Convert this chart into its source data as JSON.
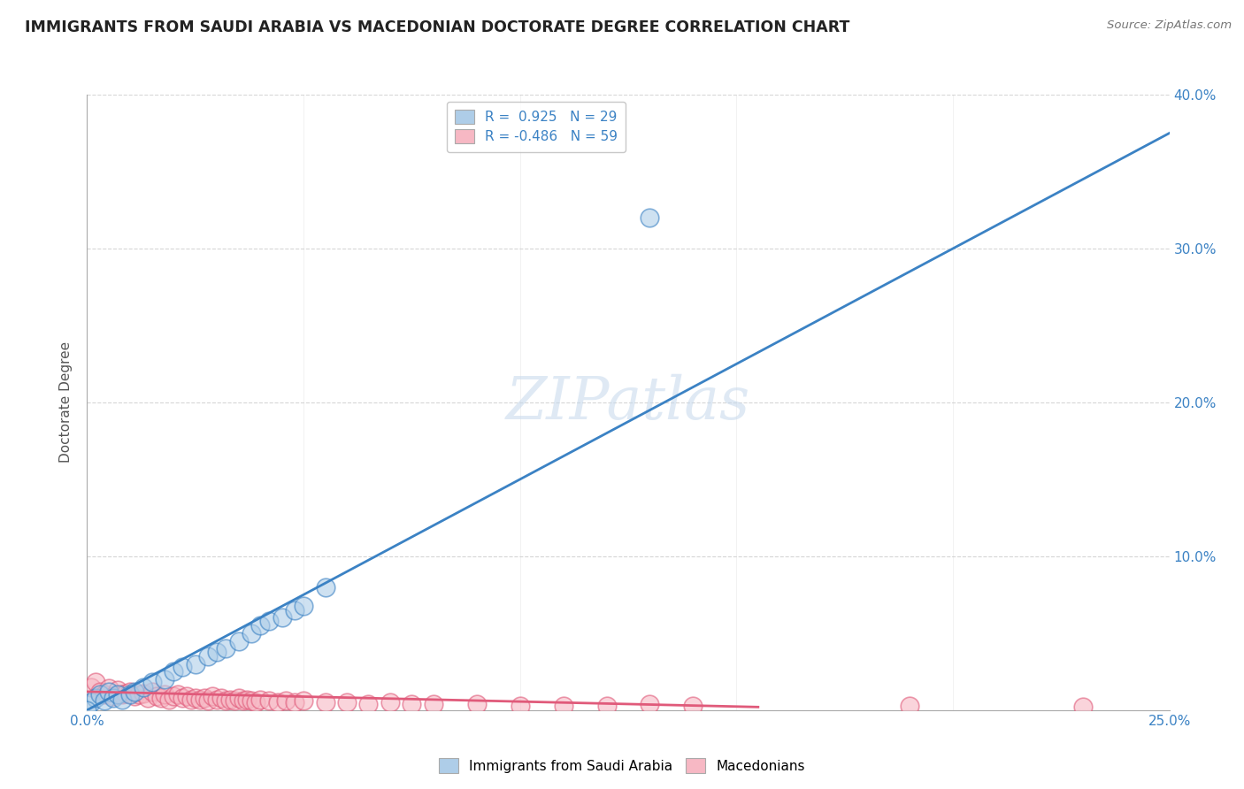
{
  "title": "IMMIGRANTS FROM SAUDI ARABIA VS MACEDONIAN DOCTORATE DEGREE CORRELATION CHART",
  "source": "Source: ZipAtlas.com",
  "ylabel": "Doctorate Degree",
  "xmin": 0.0,
  "xmax": 0.25,
  "ymin": 0.0,
  "ymax": 0.4,
  "blue_R": 0.925,
  "blue_N": 29,
  "pink_R": -0.486,
  "pink_N": 59,
  "blue_color": "#AECDE8",
  "pink_color": "#F7B8C4",
  "blue_line_color": "#3B82C4",
  "pink_line_color": "#E05A7A",
  "watermark": "ZIPatlas",
  "legend_blue_label": "Immigrants from Saudi Arabia",
  "legend_pink_label": "Macedonians",
  "blue_scatter_x": [
    0.001,
    0.002,
    0.003,
    0.004,
    0.005,
    0.006,
    0.007,
    0.008,
    0.01,
    0.011,
    0.013,
    0.015,
    0.018,
    0.02,
    0.022,
    0.025,
    0.028,
    0.03,
    0.032,
    0.035,
    0.038,
    0.04,
    0.042,
    0.045,
    0.048,
    0.05,
    0.055,
    0.13,
    0.0
  ],
  "blue_scatter_y": [
    0.005,
    0.008,
    0.01,
    0.006,
    0.012,
    0.008,
    0.01,
    0.007,
    0.01,
    0.012,
    0.015,
    0.018,
    0.02,
    0.025,
    0.028,
    0.03,
    0.035,
    0.038,
    0.04,
    0.045,
    0.05,
    0.055,
    0.058,
    0.06,
    0.065,
    0.068,
    0.08,
    0.32,
    0.0
  ],
  "pink_scatter_x": [
    0.001,
    0.002,
    0.003,
    0.004,
    0.005,
    0.006,
    0.007,
    0.008,
    0.009,
    0.01,
    0.011,
    0.012,
    0.013,
    0.014,
    0.015,
    0.016,
    0.017,
    0.018,
    0.019,
    0.02,
    0.021,
    0.022,
    0.023,
    0.024,
    0.025,
    0.026,
    0.027,
    0.028,
    0.029,
    0.03,
    0.031,
    0.032,
    0.033,
    0.034,
    0.035,
    0.036,
    0.037,
    0.038,
    0.039,
    0.04,
    0.042,
    0.044,
    0.046,
    0.048,
    0.05,
    0.055,
    0.06,
    0.065,
    0.07,
    0.075,
    0.08,
    0.09,
    0.1,
    0.11,
    0.12,
    0.13,
    0.14,
    0.19,
    0.23
  ],
  "pink_scatter_y": [
    0.015,
    0.018,
    0.012,
    0.01,
    0.014,
    0.009,
    0.013,
    0.01,
    0.011,
    0.012,
    0.009,
    0.01,
    0.011,
    0.008,
    0.012,
    0.009,
    0.008,
    0.01,
    0.007,
    0.009,
    0.01,
    0.008,
    0.009,
    0.007,
    0.008,
    0.007,
    0.008,
    0.006,
    0.009,
    0.007,
    0.008,
    0.006,
    0.007,
    0.006,
    0.008,
    0.006,
    0.007,
    0.006,
    0.005,
    0.007,
    0.006,
    0.005,
    0.006,
    0.005,
    0.006,
    0.005,
    0.005,
    0.004,
    0.005,
    0.004,
    0.004,
    0.004,
    0.003,
    0.003,
    0.003,
    0.004,
    0.003,
    0.003,
    0.002
  ],
  "blue_line_x0": 0.0,
  "blue_line_y0": 0.0,
  "blue_line_x1": 0.25,
  "blue_line_y1": 0.375,
  "pink_line_x0": 0.0,
  "pink_line_y0": 0.012,
  "pink_line_x1": 0.155,
  "pink_line_y1": 0.002
}
